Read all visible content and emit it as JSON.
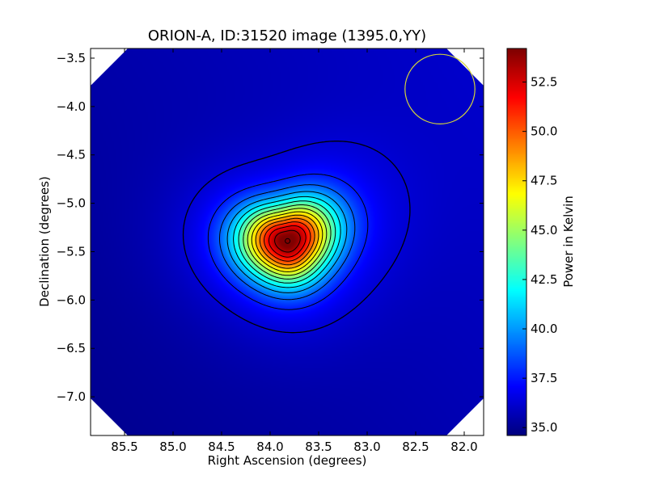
{
  "chart_data": {
    "type": "heatmap",
    "title": "ORION-A, ID:31520 image (1395.0,YY)",
    "xlabel": "Right Ascension (degrees)",
    "ylabel": "Declination (degrees)",
    "xlim": [
      85.85,
      81.8
    ],
    "ylim": [
      -7.4,
      -3.4
    ],
    "x_ticks": [
      85.5,
      85.0,
      84.5,
      84.0,
      83.5,
      83.0,
      82.5,
      82.0
    ],
    "x_tick_labels": [
      "85.5",
      "85.0",
      "84.5",
      "84.0",
      "83.5",
      "83.0",
      "82.5",
      "82.0"
    ],
    "y_ticks": [
      -3.5,
      -4.0,
      -4.5,
      -5.0,
      -5.5,
      -6.0,
      -6.5,
      -7.0
    ],
    "y_tick_labels": [
      "−3.5",
      "−4.0",
      "−4.5",
      "−5.0",
      "−5.5",
      "−6.0",
      "−6.5",
      "−7.0"
    ],
    "colorbar": {
      "label": "Power in Kelvin",
      "min": 34.6,
      "max": 54.2,
      "colormap": "jet",
      "ticks": [
        35.0,
        37.5,
        40.0,
        42.5,
        45.0,
        47.5,
        50.0,
        52.5
      ],
      "tick_labels": [
        "35.0",
        "37.5",
        "40.0",
        "42.5",
        "45.0",
        "47.5",
        "50.0",
        "52.5"
      ]
    },
    "peak": {
      "ra": 83.82,
      "dec": -5.39,
      "value": 54.2
    },
    "background_level": 35.5,
    "contour_count": 14,
    "beam_circle": {
      "ra": 82.25,
      "dec": -3.82,
      "radius_deg": 0.36,
      "color": "#d4d43a"
    },
    "grid": false
  }
}
